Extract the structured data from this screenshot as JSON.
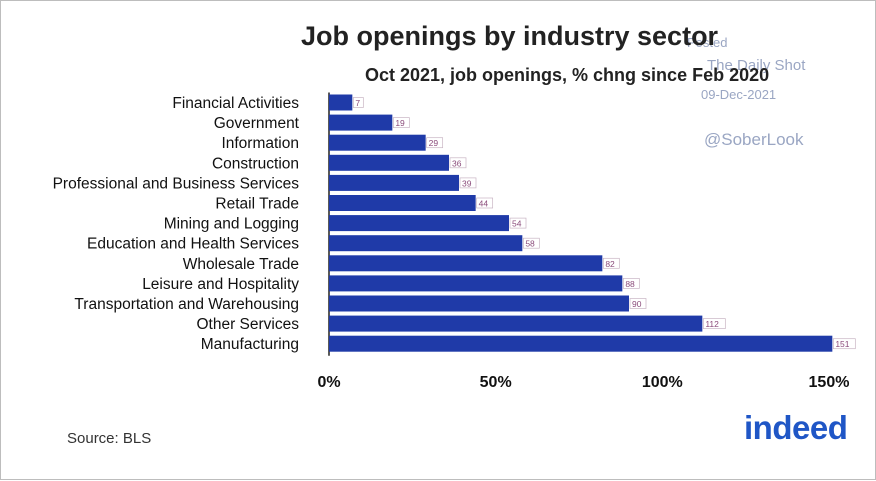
{
  "chart_data": {
    "type": "bar",
    "orientation": "horizontal",
    "title": "Job openings by industry sector",
    "subtitle": "Oct 2021, job openings, % chng since Feb 2020",
    "categories": [
      "Financial Activities",
      "Government",
      "Information",
      "Construction",
      "Professional and Business Services",
      "Retail Trade",
      "Mining and Logging",
      "Education and Health Services",
      "Wholesale Trade",
      "Leisure and Hospitality",
      "Transportation and Warehousing",
      "Other Services",
      "Manufacturing"
    ],
    "values": [
      7,
      19,
      29,
      36,
      39,
      44,
      54,
      58,
      82,
      88,
      90,
      112,
      151
    ],
    "xlim": [
      0,
      150
    ],
    "xticks": [
      0,
      50,
      100,
      150
    ],
    "xtick_labels": [
      "0%",
      "50%",
      "100%",
      "150%"
    ],
    "bar_color": "#1f3aa8",
    "label_color": "#8a4a7a",
    "grid": false
  },
  "watermark": {
    "line1": "Posted",
    "line2": "The Daily Shot",
    "line3": "09-Dec-2021",
    "handle": "@SoberLook"
  },
  "source": "Source: BLS",
  "logo_text": "indeed"
}
